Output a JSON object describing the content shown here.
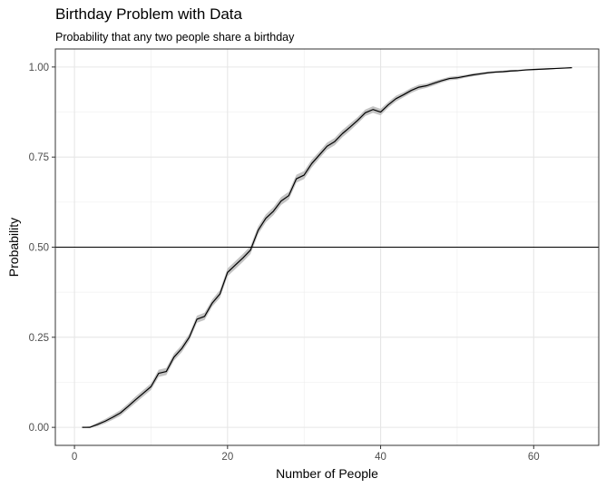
{
  "chart_data": {
    "type": "line",
    "title": "Birthday Problem with Data",
    "subtitle": "Probability that any two people share a birthday",
    "xlabel": "Number of People",
    "ylabel": "Probability",
    "xlim": [
      -2.5,
      68.5
    ],
    "ylim": [
      -0.05,
      1.05
    ],
    "x_ticks": [
      0,
      20,
      40,
      60
    ],
    "x_tick_labels": [
      "0",
      "20",
      "40",
      "60"
    ],
    "y_ticks": [
      0,
      0.25,
      0.5,
      0.75,
      1.0
    ],
    "y_tick_labels": [
      "0.00",
      "0.25",
      "0.50",
      "0.75",
      "1.00"
    ],
    "grid": true,
    "reference_line": {
      "y": 0.5
    },
    "series": [
      {
        "color": "#000000",
        "band_color": "#bdbdbd",
        "x": [
          1,
          2,
          3,
          4,
          5,
          6,
          7,
          8,
          9,
          10,
          11,
          12,
          13,
          14,
          15,
          16,
          17,
          18,
          19,
          20,
          21,
          22,
          23,
          24,
          25,
          26,
          27,
          28,
          29,
          30,
          31,
          32,
          33,
          34,
          35,
          36,
          37,
          38,
          39,
          40,
          41,
          42,
          43,
          44,
          45,
          46,
          47,
          48,
          49,
          50,
          51,
          52,
          53,
          54,
          55,
          56,
          57,
          58,
          59,
          60,
          61,
          62,
          63,
          64,
          65
        ],
        "y": [
          0.0,
          0.0,
          0.008,
          0.017,
          0.028,
          0.04,
          0.058,
          0.077,
          0.095,
          0.113,
          0.15,
          0.155,
          0.195,
          0.218,
          0.25,
          0.3,
          0.308,
          0.345,
          0.37,
          0.43,
          0.45,
          0.47,
          0.492,
          0.547,
          0.58,
          0.6,
          0.628,
          0.643,
          0.69,
          0.7,
          0.732,
          0.756,
          0.78,
          0.793,
          0.815,
          0.833,
          0.852,
          0.873,
          0.882,
          0.875,
          0.895,
          0.912,
          0.923,
          0.935,
          0.944,
          0.948,
          0.955,
          0.962,
          0.968,
          0.97,
          0.974,
          0.978,
          0.981,
          0.984,
          0.986,
          0.987,
          0.989,
          0.99,
          0.992,
          0.993,
          0.994,
          0.995,
          0.996,
          0.997,
          0.998
        ],
        "band": [
          0,
          0.003,
          0.005,
          0.006,
          0.007,
          0.008,
          0.008,
          0.009,
          0.009,
          0.009,
          0.01,
          0.01,
          0.01,
          0.01,
          0.01,
          0.01,
          0.01,
          0.01,
          0.011,
          0.011,
          0.011,
          0.011,
          0.011,
          0.011,
          0.011,
          0.011,
          0.011,
          0.011,
          0.011,
          0.011,
          0.011,
          0.01,
          0.01,
          0.01,
          0.01,
          0.01,
          0.009,
          0.009,
          0.009,
          0.009,
          0.008,
          0.008,
          0.007,
          0.007,
          0.007,
          0.006,
          0.006,
          0.005,
          0.005,
          0.005,
          0.004,
          0.004,
          0.004,
          0.003,
          0.003,
          0.003,
          0.003,
          0.002,
          0.002,
          0.002,
          0.002,
          0.002,
          0.001,
          0.001,
          0.001
        ]
      }
    ]
  }
}
